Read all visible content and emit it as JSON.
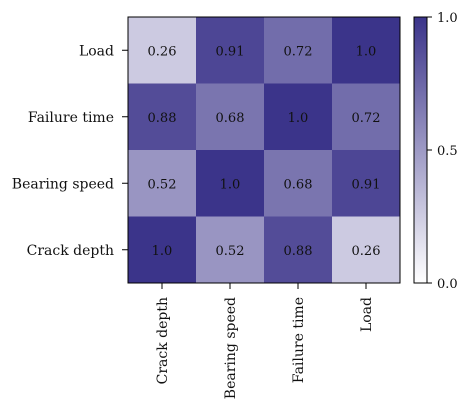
{
  "chart_data": {
    "type": "heatmap",
    "title": "",
    "xlabel": "",
    "ylabel": "",
    "x_categories": [
      "Crack depth",
      "Bearing speed",
      "Failure time",
      "Load"
    ],
    "y_categories": [
      "Load",
      "Failure time",
      "Bearing speed",
      "Crack depth"
    ],
    "values": [
      [
        0.26,
        0.91,
        0.72,
        1.0
      ],
      [
        0.88,
        0.68,
        1.0,
        0.72
      ],
      [
        0.52,
        1.0,
        0.68,
        0.91
      ],
      [
        1.0,
        0.52,
        0.88,
        0.26
      ]
    ],
    "value_labels": [
      [
        "0.26",
        "0.91",
        "0.72",
        "1.0"
      ],
      [
        "0.88",
        "0.68",
        "1.0",
        "0.72"
      ],
      [
        "0.52",
        "1.0",
        "0.68",
        "0.91"
      ],
      [
        "1.0",
        "0.52",
        "0.88",
        "0.26"
      ]
    ],
    "colorbar": {
      "range": [
        0.0,
        1.0
      ],
      "ticks": [
        1.0,
        0.5,
        0.0
      ],
      "tick_labels": [
        "1.0",
        "0.5",
        "0.0"
      ],
      "color_low": "#ffffff",
      "color_high": "#3b348a",
      "placement": "right"
    },
    "grid": false
  }
}
